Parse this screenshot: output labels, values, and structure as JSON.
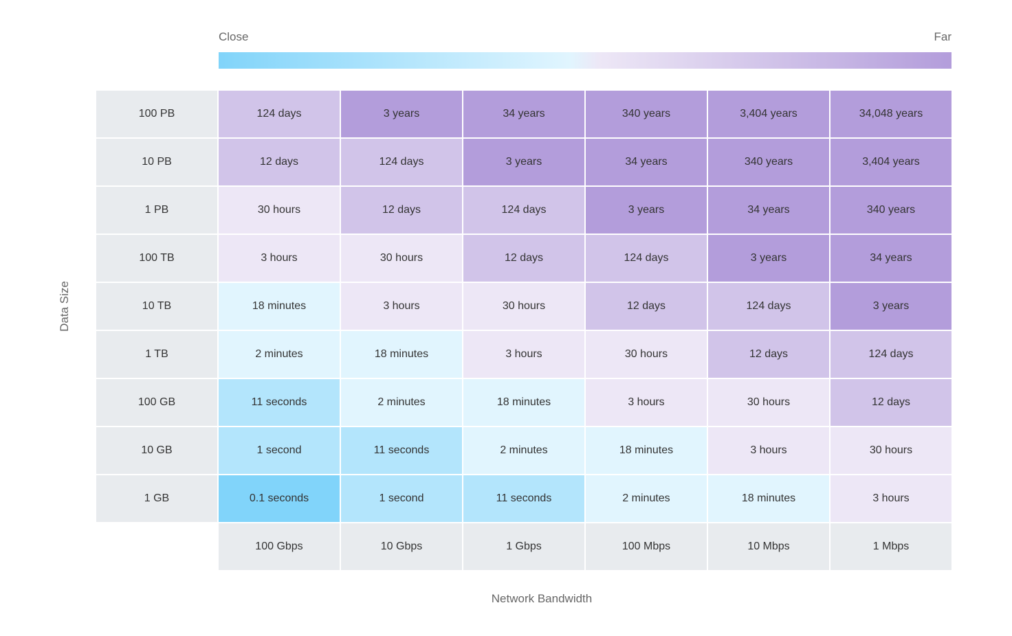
{
  "legend": {
    "low": "Close",
    "high": "Far"
  },
  "y_axis_label": "Data Size",
  "x_axis_label": "Network Bandwidth",
  "columns": [
    "100 Gbps",
    "10 Gbps",
    "1 Gbps",
    "100 Mbps",
    "10 Mbps",
    "1 Mbps"
  ],
  "rows": [
    {
      "label": "100 PB",
      "cells": [
        "124 days",
        "3 years",
        "34 years",
        "340 years",
        "3,404 years",
        "34,048 years"
      ]
    },
    {
      "label": "10 PB",
      "cells": [
        "12 days",
        "124 days",
        "3 years",
        "34 years",
        "340 years",
        "3,404 years"
      ]
    },
    {
      "label": "1 PB",
      "cells": [
        "30 hours",
        "12 days",
        "124 days",
        "3 years",
        "34 years",
        "340 years"
      ]
    },
    {
      "label": "100 TB",
      "cells": [
        "3 hours",
        "30 hours",
        "12 days",
        "124 days",
        "3 years",
        "34 years"
      ]
    },
    {
      "label": "10 TB",
      "cells": [
        "18 minutes",
        "3 hours",
        "30 hours",
        "12 days",
        "124 days",
        "3 years"
      ]
    },
    {
      "label": "1 TB",
      "cells": [
        "2 minutes",
        "18 minutes",
        "3 hours",
        "30 hours",
        "12 days",
        "124 days"
      ]
    },
    {
      "label": "100 GB",
      "cells": [
        "11 seconds",
        "2 minutes",
        "18 minutes",
        "3 hours",
        "30 hours",
        "12 days"
      ]
    },
    {
      "label": "10 GB",
      "cells": [
        "1 second",
        "11 seconds",
        "2 minutes",
        "18 minutes",
        "3 hours",
        "30 hours"
      ]
    },
    {
      "label": "1 GB",
      "cells": [
        "0.1 seconds",
        "1 second",
        "11 seconds",
        "2 minutes",
        "18 minutes",
        "3 hours"
      ]
    }
  ]
}
